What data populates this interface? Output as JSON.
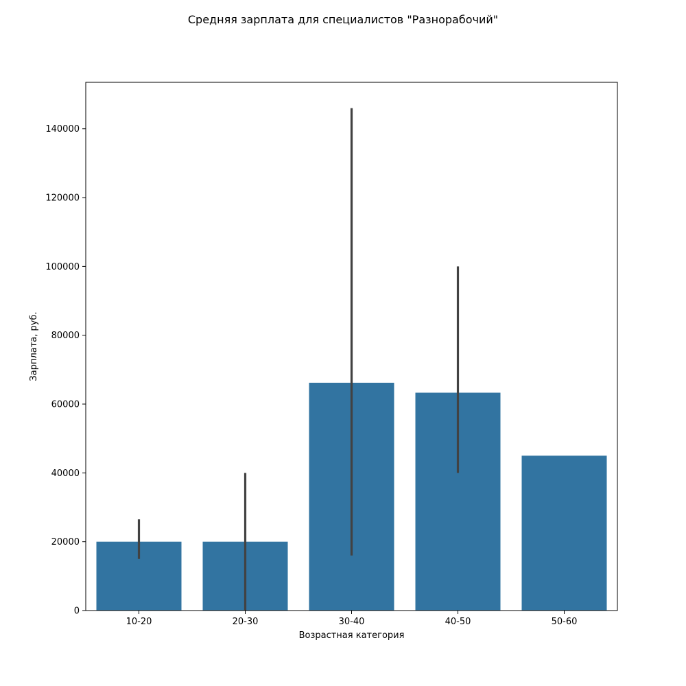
{
  "chart_data": {
    "type": "bar",
    "title": "Средняя зарплата для специалистов \"Разнорабочий\"",
    "xlabel": "Возрастная категория",
    "ylabel": "Зарплата, руб.",
    "categories": [
      "10-20",
      "20-30",
      "30-40",
      "40-50",
      "50-60"
    ],
    "values": [
      20000,
      20000,
      66200,
      63300,
      45000
    ],
    "error_low": [
      15000,
      0,
      16000,
      40000,
      null
    ],
    "error_high": [
      26500,
      40000,
      146000,
      100000,
      null
    ],
    "ylim": [
      0,
      153500
    ],
    "yticks": [
      0,
      20000,
      40000,
      60000,
      80000,
      100000,
      120000,
      140000
    ],
    "grid": false,
    "colors": {
      "bar": "#3274a1",
      "errorbar": "#424242",
      "axis": "#000000"
    }
  }
}
